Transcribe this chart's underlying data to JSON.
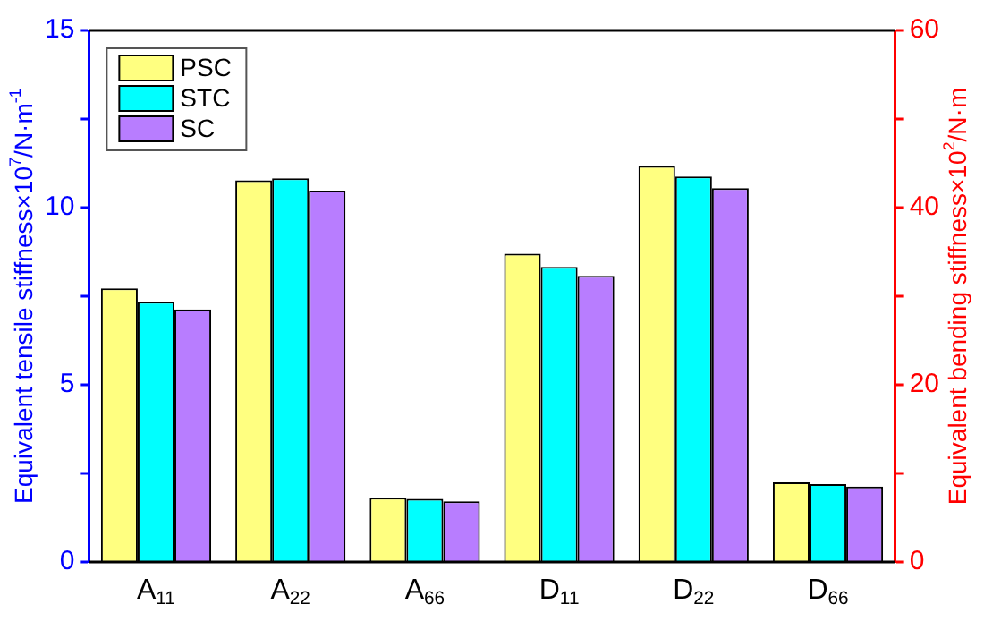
{
  "chart_data": {
    "type": "bar",
    "categories": [
      "A$_{11}$",
      "A$_{22}$",
      "A$_{66}$",
      "D$_{11}$",
      "D$_{22}$",
      "D$_{66}$"
    ],
    "ylabel": "Equivalent tensile stiffness×10$^{7}$/N·m$^{-1}$",
    "y2label": "Equivalent bending stiffness×10$^{2}$/N·m",
    "series": [
      {
        "name": "PSC",
        "color": "#ffff80",
        "values": [
          7.72,
          10.77,
          1.81,
          null,
          null,
          null
        ]
      },
      {
        "name": "STC",
        "color": "#00ffff",
        "values": [
          7.34,
          10.83,
          1.78,
          null,
          null,
          null
        ]
      },
      {
        "name": "SC",
        "color": "#b87dff",
        "values": [
          7.13,
          10.48,
          1.71,
          null,
          null,
          null
        ]
      },
      {
        "color": "#ffff80",
        "axis": "y2",
        "values": [
          null,
          null,
          null,
          34.8,
          44.7,
          9.0
        ]
      },
      {
        "color": "#00ffff",
        "axis": "y2",
        "values": [
          null,
          null,
          null,
          33.3,
          43.5,
          8.8
        ]
      },
      {
        "color": "#b87dff",
        "axis": "y2",
        "values": [
          null,
          null,
          null,
          32.3,
          42.2,
          8.5
        ]
      }
    ],
    "ylim": [
      0,
      15
    ],
    "yticks": [
      0,
      {
        "value": 2.5,
        "label": null
      },
      5,
      {
        "value": 7.5,
        "label": null
      },
      10,
      {
        "value": 12.5,
        "label": null
      },
      15
    ],
    "y2lim": [
      0,
      60
    ],
    "y2ticks": [
      0,
      {
        "value": 10,
        "label": null
      },
      20,
      {
        "value": 30,
        "label": null
      },
      40,
      {
        "value": 50,
        "label": null
      },
      60
    ],
    "grid": false,
    "legend": "top left"
  }
}
